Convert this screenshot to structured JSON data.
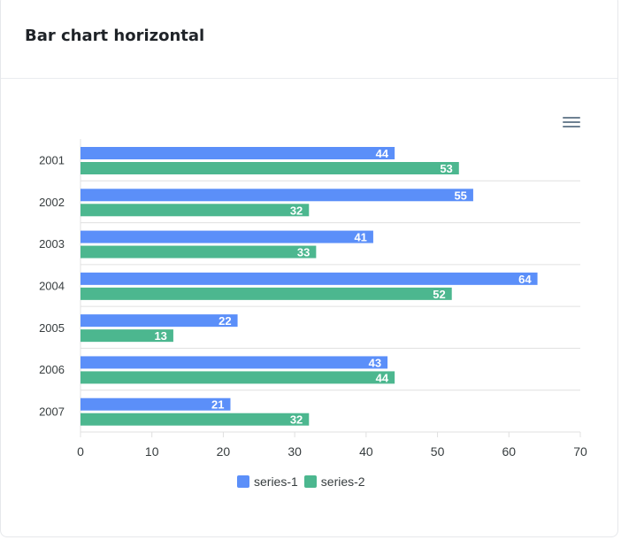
{
  "card": {
    "title": "Bar chart horizontal"
  },
  "toolbar": {
    "menu_icon": "hamburger-menu-icon"
  },
  "colors": {
    "series_1": "#5b8ff9",
    "series_2": "#4cb78f",
    "grid": "#e0e0e0",
    "axis_text": "#373d3f",
    "bar_label": "#ffffff"
  },
  "chart_data": {
    "type": "bar",
    "orientation": "horizontal",
    "categories": [
      "2001",
      "2002",
      "2003",
      "2004",
      "2005",
      "2006",
      "2007"
    ],
    "series": [
      {
        "name": "series-1",
        "values": [
          44,
          55,
          41,
          64,
          22,
          43,
          21
        ]
      },
      {
        "name": "series-2",
        "values": [
          53,
          32,
          33,
          52,
          13,
          44,
          32
        ]
      }
    ],
    "xticks": [
      "0",
      "10",
      "20",
      "30",
      "40",
      "50",
      "60",
      "70"
    ],
    "xlim": [
      0,
      70
    ],
    "data_labels": true,
    "grid": true,
    "legend_position": "bottom"
  }
}
